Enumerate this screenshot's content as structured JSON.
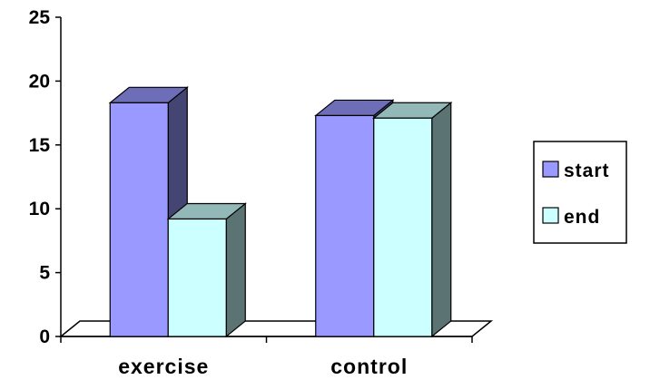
{
  "chart_data": {
    "type": "bar",
    "categories": [
      "exercise",
      "control"
    ],
    "series": [
      {
        "name": "start",
        "values": [
          18.3,
          17.3
        ],
        "color": "#9999ff"
      },
      {
        "name": "end",
        "values": [
          9.2,
          17.1
        ],
        "color": "#ccffff"
      }
    ],
    "ylim": [
      0,
      25
    ],
    "yticks": [
      0,
      5,
      10,
      15,
      20,
      25
    ],
    "legend": "right",
    "bar_style": "3d"
  }
}
